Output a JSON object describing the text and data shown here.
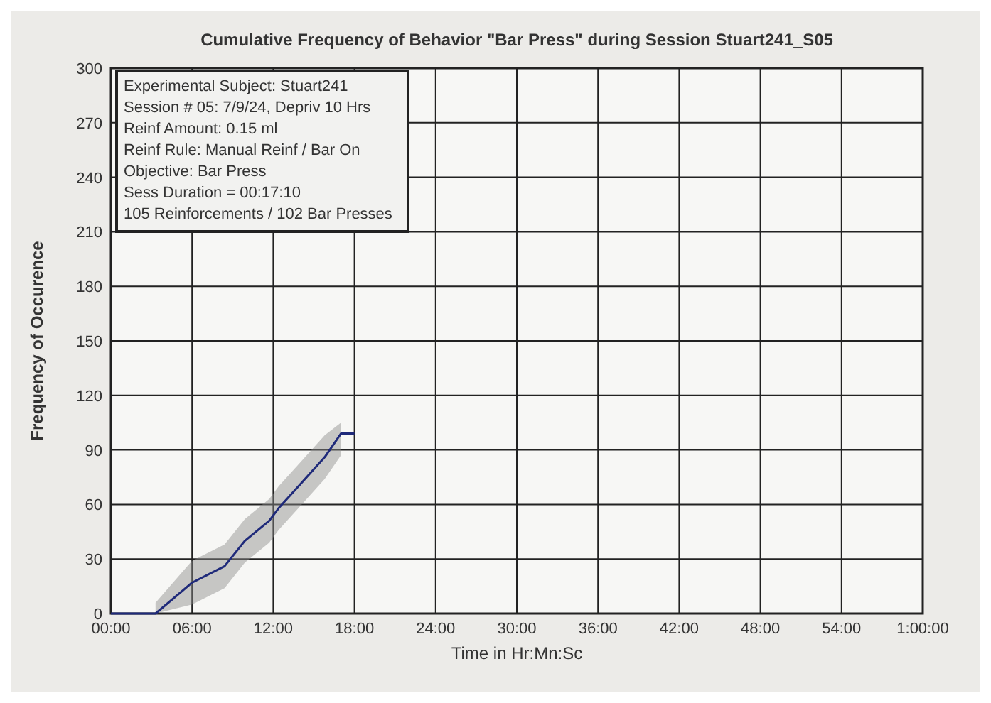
{
  "chart_data": {
    "type": "line",
    "title": "Cumulative Frequency of Behavior \"Bar Press\" during Session Stuart241_S05",
    "xlabel": "Time in Hr:Mn:Sc",
    "ylabel": "Frequency of Occurence",
    "annotations": [
      "Experimental Subject: Stuart241",
      "Session # 05: 7/9/24, Depriv 10 Hrs",
      "Reinf Amount: 0.15 ml",
      "Reinf Rule: Manual Reinf / Bar On",
      "Objective: Bar Press",
      "Sess Duration = 00:17:10",
      "105 Reinforcements / 102 Bar Presses"
    ],
    "series": [
      {
        "color": "#1f2a7a",
        "x": [
          0,
          3.3,
          6,
          8.4,
          9.9,
          11.7,
          12.4,
          14.1,
          15.8,
          17,
          18
        ],
        "values": [
          0,
          0,
          17,
          26,
          40,
          51,
          58,
          72,
          86,
          99,
          99
        ],
        "lower": [
          null,
          0,
          5,
          14,
          28,
          39,
          46,
          60,
          74,
          87,
          null
        ],
        "upper": [
          null,
          6,
          29,
          38,
          52,
          63,
          70,
          84,
          98,
          105,
          null
        ]
      }
    ],
    "xlim": [
      0,
      60
    ],
    "ylim": [
      0,
      300
    ],
    "xticks": [
      {
        "value": 0,
        "label": "00:00"
      },
      {
        "value": 6,
        "label": "06:00"
      },
      {
        "value": 12,
        "label": "12:00"
      },
      {
        "value": 18,
        "label": "18:00"
      },
      {
        "value": 24,
        "label": "24:00"
      },
      {
        "value": 30,
        "label": "30:00"
      },
      {
        "value": 36,
        "label": "36:00"
      },
      {
        "value": 42,
        "label": "42:00"
      },
      {
        "value": 48,
        "label": "48:00"
      },
      {
        "value": 54,
        "label": "54:00"
      },
      {
        "value": 60,
        "label": "1:00:00"
      }
    ],
    "yticks": [
      0,
      30,
      60,
      90,
      120,
      150,
      180,
      210,
      240,
      270,
      300
    ],
    "grid": true,
    "marker": "none",
    "line_style": "solid"
  }
}
